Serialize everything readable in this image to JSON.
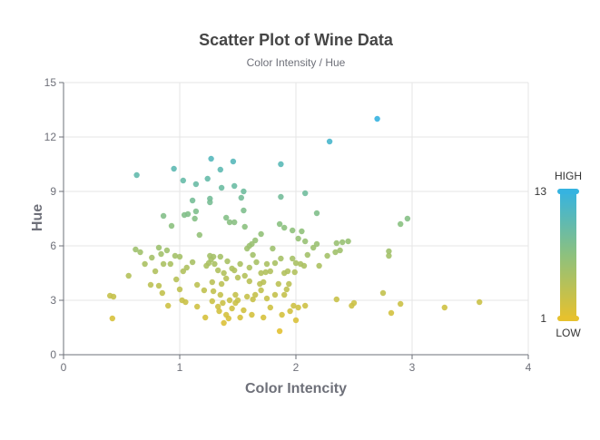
{
  "colors": {
    "high": "#36b3e0",
    "mid": "#8dc17e",
    "low": "#e6c12e",
    "grid": "#e6e6e6",
    "axis": "#6e7079"
  },
  "chart_data": {
    "type": "scatter",
    "title": "Scatter Plot of Wine Data",
    "subtitle": "Color Intensity / Hue",
    "xlabel": "Color Intencity",
    "ylabel": "Hue",
    "xlim": [
      0,
      4
    ],
    "ylim": [
      0,
      15
    ],
    "xticks": [
      "0",
      "1",
      "2",
      "3",
      "4"
    ],
    "yticks": [
      "0",
      "3",
      "6",
      "9",
      "12",
      "15"
    ],
    "grid": true,
    "visual_map": {
      "min": 1,
      "max": 13,
      "min_label": "1",
      "max_label": "13",
      "high_text": "HIGH",
      "low_text": "LOW",
      "placement": "right"
    },
    "points": [
      [
        0.63,
        9.9
      ],
      [
        0.95,
        10.25
      ],
      [
        1.03,
        9.6
      ],
      [
        1.27,
        10.8
      ],
      [
        1.35,
        10.2
      ],
      [
        1.46,
        10.65
      ],
      [
        1.87,
        10.5
      ],
      [
        2.29,
        11.75
      ],
      [
        2.7,
        13.0
      ],
      [
        1.14,
        9.4
      ],
      [
        1.24,
        9.7
      ],
      [
        1.36,
        9.2
      ],
      [
        1.47,
        9.3
      ],
      [
        1.55,
        9.0
      ],
      [
        1.53,
        8.65
      ],
      [
        1.11,
        8.5
      ],
      [
        1.26,
        8.6
      ],
      [
        1.26,
        8.4
      ],
      [
        1.87,
        8.7
      ],
      [
        2.08,
        8.9
      ],
      [
        0.86,
        7.65
      ],
      [
        1.04,
        7.7
      ],
      [
        1.07,
        7.75
      ],
      [
        1.14,
        7.9
      ],
      [
        1.13,
        7.5
      ],
      [
        1.4,
        7.55
      ],
      [
        1.43,
        7.3
      ],
      [
        1.47,
        7.3
      ],
      [
        1.55,
        7.95
      ],
      [
        1.56,
        7.05
      ],
      [
        2.18,
        7.8
      ],
      [
        2.9,
        7.2
      ],
      [
        2.96,
        7.5
      ],
      [
        0.93,
        7.1
      ],
      [
        1.17,
        6.6
      ],
      [
        1.65,
        6.3
      ],
      [
        1.7,
        6.65
      ],
      [
        1.86,
        7.2
      ],
      [
        1.9,
        7.0
      ],
      [
        1.97,
        6.85
      ],
      [
        2.02,
        6.4
      ],
      [
        2.05,
        6.8
      ],
      [
        2.08,
        6.25
      ],
      [
        2.18,
        6.1
      ],
      [
        2.35,
        6.15
      ],
      [
        2.4,
        6.2
      ],
      [
        2.45,
        6.25
      ],
      [
        0.4,
        3.25
      ],
      [
        0.42,
        2.0
      ],
      [
        0.43,
        3.2
      ],
      [
        0.56,
        4.35
      ],
      [
        0.62,
        5.8
      ],
      [
        0.66,
        5.65
      ],
      [
        0.7,
        5.0
      ],
      [
        0.76,
        5.35
      ],
      [
        0.79,
        4.6
      ],
      [
        0.82,
        5.9
      ],
      [
        0.84,
        5.55
      ],
      [
        0.86,
        5.0
      ],
      [
        0.89,
        5.75
      ],
      [
        0.75,
        3.85
      ],
      [
        0.82,
        3.8
      ],
      [
        0.85,
        3.4
      ],
      [
        0.92,
        5.0
      ],
      [
        0.96,
        5.45
      ],
      [
        0.97,
        4.15
      ],
      [
        1.0,
        5.4
      ],
      [
        1.03,
        4.6
      ],
      [
        1.06,
        4.8
      ],
      [
        1.11,
        5.1
      ],
      [
        1.15,
        3.85
      ],
      [
        1.25,
        5.05
      ],
      [
        1.26,
        5.45
      ],
      [
        1.28,
        4.0
      ],
      [
        1.29,
        5.4
      ],
      [
        1.3,
        5.0
      ],
      [
        1.35,
        5.4
      ],
      [
        1.33,
        4.65
      ],
      [
        1.36,
        3.9
      ],
      [
        1.38,
        4.5
      ],
      [
        1.4,
        4.2
      ],
      [
        1.45,
        4.75
      ],
      [
        1.47,
        4.65
      ],
      [
        1.5,
        4.25
      ],
      [
        1.52,
        5.0
      ],
      [
        1.56,
        4.35
      ],
      [
        1.58,
        5.85
      ],
      [
        1.6,
        6.0
      ],
      [
        1.62,
        6.1
      ],
      [
        1.63,
        5.5
      ],
      [
        1.6,
        4.8
      ],
      [
        1.66,
        5.1
      ],
      [
        1.7,
        4.5
      ],
      [
        1.72,
        4.0
      ],
      [
        1.75,
        5.0
      ],
      [
        1.78,
        4.6
      ],
      [
        1.8,
        5.85
      ],
      [
        1.82,
        5.05
      ],
      [
        1.85,
        3.9
      ],
      [
        1.87,
        5.3
      ],
      [
        1.9,
        4.5
      ],
      [
        1.93,
        4.6
      ],
      [
        1.94,
        3.9
      ],
      [
        1.97,
        5.3
      ],
      [
        1.99,
        4.55
      ],
      [
        2.0,
        5.05
      ],
      [
        2.04,
        5.0
      ],
      [
        2.07,
        4.9
      ],
      [
        2.1,
        5.5
      ],
      [
        2.15,
        5.9
      ],
      [
        2.2,
        4.9
      ],
      [
        2.27,
        5.45
      ],
      [
        2.34,
        5.65
      ],
      [
        2.38,
        5.75
      ],
      [
        2.8,
        5.7
      ],
      [
        2.8,
        5.45
      ],
      [
        0.9,
        2.7
      ],
      [
        1.0,
        3.6
      ],
      [
        1.02,
        3.0
      ],
      [
        1.05,
        2.9
      ],
      [
        1.15,
        2.65
      ],
      [
        1.22,
        2.05
      ],
      [
        1.28,
        2.95
      ],
      [
        1.33,
        2.65
      ],
      [
        1.34,
        2.4
      ],
      [
        1.35,
        3.3
      ],
      [
        1.37,
        2.85
      ],
      [
        1.38,
        1.75
      ],
      [
        1.4,
        2.2
      ],
      [
        1.42,
        2.0
      ],
      [
        1.43,
        3.0
      ],
      [
        1.45,
        2.55
      ],
      [
        1.48,
        2.85
      ],
      [
        1.5,
        3.0
      ],
      [
        1.52,
        2.05
      ],
      [
        1.55,
        2.45
      ],
      [
        1.58,
        3.2
      ],
      [
        1.62,
        2.2
      ],
      [
        1.63,
        3.05
      ],
      [
        1.65,
        3.3
      ],
      [
        1.7,
        3.55
      ],
      [
        1.72,
        2.05
      ],
      [
        1.75,
        3.1
      ],
      [
        1.78,
        2.6
      ],
      [
        1.82,
        3.3
      ],
      [
        1.86,
        1.3
      ],
      [
        1.88,
        2.2
      ],
      [
        1.92,
        3.6
      ],
      [
        1.95,
        2.4
      ],
      [
        1.98,
        2.7
      ],
      [
        2.0,
        1.9
      ],
      [
        2.02,
        2.6
      ],
      [
        2.08,
        2.7
      ],
      [
        2.35,
        3.05
      ],
      [
        2.48,
        2.7
      ],
      [
        2.5,
        2.85
      ],
      [
        2.75,
        3.4
      ],
      [
        2.82,
        2.3
      ],
      [
        2.9,
        2.8
      ],
      [
        3.28,
        2.6
      ],
      [
        3.58,
        2.9
      ],
      [
        1.23,
        4.9
      ],
      [
        1.27,
        5.25
      ],
      [
        1.41,
        5.15
      ],
      [
        1.6,
        4.05
      ],
      [
        1.69,
        3.9
      ],
      [
        1.74,
        4.55
      ],
      [
        1.48,
        3.3
      ],
      [
        1.21,
        3.55
      ],
      [
        1.29,
        3.5
      ],
      [
        1.9,
        3.3
      ]
    ]
  }
}
